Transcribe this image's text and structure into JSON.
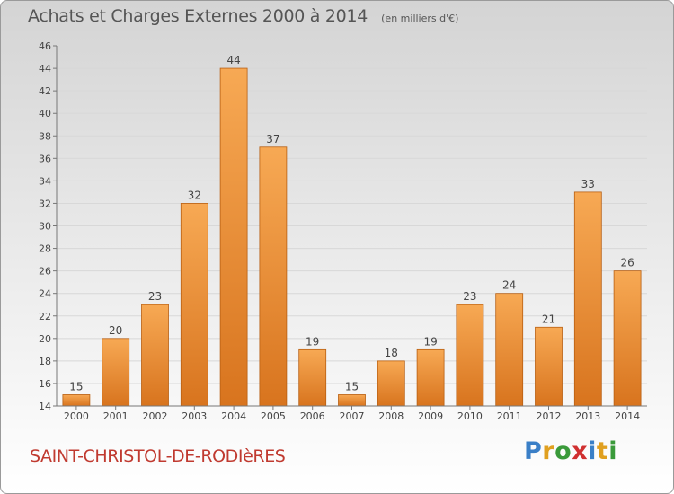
{
  "header": {
    "title": "Achats et Charges Externes 2000 à 2014",
    "unit": "(en milliers d'€)"
  },
  "location": "SAINT-CHRISTOL-DE-RODIèRES",
  "logo": {
    "text": "Proxiti",
    "letters": [
      {
        "ch": "P",
        "color": "#3a7fc7"
      },
      {
        "ch": "r",
        "color": "#e0a020"
      },
      {
        "ch": "o",
        "color": "#3a9a3a"
      },
      {
        "ch": "x",
        "color": "#d03030"
      },
      {
        "ch": "i",
        "color": "#3a7fc7"
      },
      {
        "ch": "t",
        "color": "#e0a020"
      },
      {
        "ch": "i",
        "color": "#3a9a3a"
      }
    ]
  },
  "colors": {
    "bar_light": "#f7a954",
    "bar_dark": "#d8741e",
    "bar_edge": "#b85f12",
    "grid": "#d8d8d8",
    "axis": "#777777",
    "location": "#c03a30"
  },
  "chart_data": {
    "type": "bar",
    "title": "Achats et Charges Externes 2000 à 2014",
    "subtitle": "(en milliers d'€)",
    "categories": [
      "2000",
      "2001",
      "2002",
      "2003",
      "2004",
      "2005",
      "2006",
      "2007",
      "2008",
      "2009",
      "2010",
      "2011",
      "2012",
      "2013",
      "2014"
    ],
    "values": [
      15,
      20,
      23,
      32,
      44,
      37,
      19,
      15,
      18,
      19,
      23,
      24,
      21,
      33,
      26
    ],
    "ylim": [
      14,
      46
    ],
    "yticks": [
      14,
      16,
      18,
      20,
      22,
      24,
      26,
      28,
      30,
      32,
      34,
      36,
      38,
      40,
      42,
      44,
      46
    ],
    "grid": true,
    "data_labels": true
  }
}
